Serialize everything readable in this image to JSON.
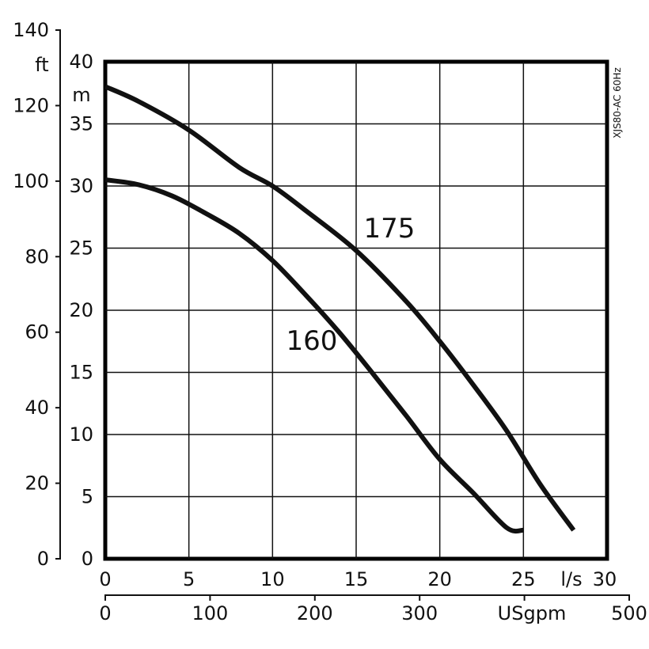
{
  "chart_data": {
    "type": "line",
    "model_label": "XJS80-AC 60Hz",
    "x_primary": {
      "unit": "l/s",
      "range": [
        0,
        30
      ],
      "ticks": [
        0,
        5,
        10,
        15,
        20,
        25,
        30
      ]
    },
    "x_secondary": {
      "unit": "USgpm",
      "range": [
        0,
        500
      ],
      "ticks": [
        0,
        100,
        200,
        300,
        500
      ]
    },
    "y_primary": {
      "unit": "m",
      "range": [
        0,
        40
      ],
      "ticks": [
        0,
        5,
        10,
        15,
        20,
        25,
        30,
        35,
        40
      ]
    },
    "y_secondary": {
      "unit": "ft",
      "range": [
        0,
        140
      ],
      "ticks": [
        0,
        20,
        40,
        60,
        80,
        100,
        120,
        140
      ]
    },
    "grid": true,
    "series": [
      {
        "name": "175",
        "points": [
          [
            0,
            38
          ],
          [
            2,
            36.8
          ],
          [
            5,
            34.5
          ],
          [
            8,
            31.5
          ],
          [
            10,
            30.0
          ],
          [
            12,
            28.0
          ],
          [
            15,
            24.8
          ],
          [
            18,
            20.7
          ],
          [
            20,
            17.5
          ],
          [
            22,
            14.0
          ],
          [
            24,
            10.3
          ],
          [
            26,
            6.0
          ],
          [
            28,
            2.3
          ]
        ]
      },
      {
        "name": "160",
        "points": [
          [
            0,
            30.5
          ],
          [
            2,
            30.1
          ],
          [
            4,
            29.2
          ],
          [
            6,
            27.8
          ],
          [
            8,
            26.2
          ],
          [
            10,
            24.0
          ],
          [
            12,
            21.2
          ],
          [
            14,
            18.2
          ],
          [
            16,
            14.9
          ],
          [
            18,
            11.5
          ],
          [
            20,
            8.0
          ],
          [
            22,
            5.3
          ],
          [
            24,
            2.5
          ],
          [
            25,
            2.3
          ]
        ]
      }
    ]
  }
}
